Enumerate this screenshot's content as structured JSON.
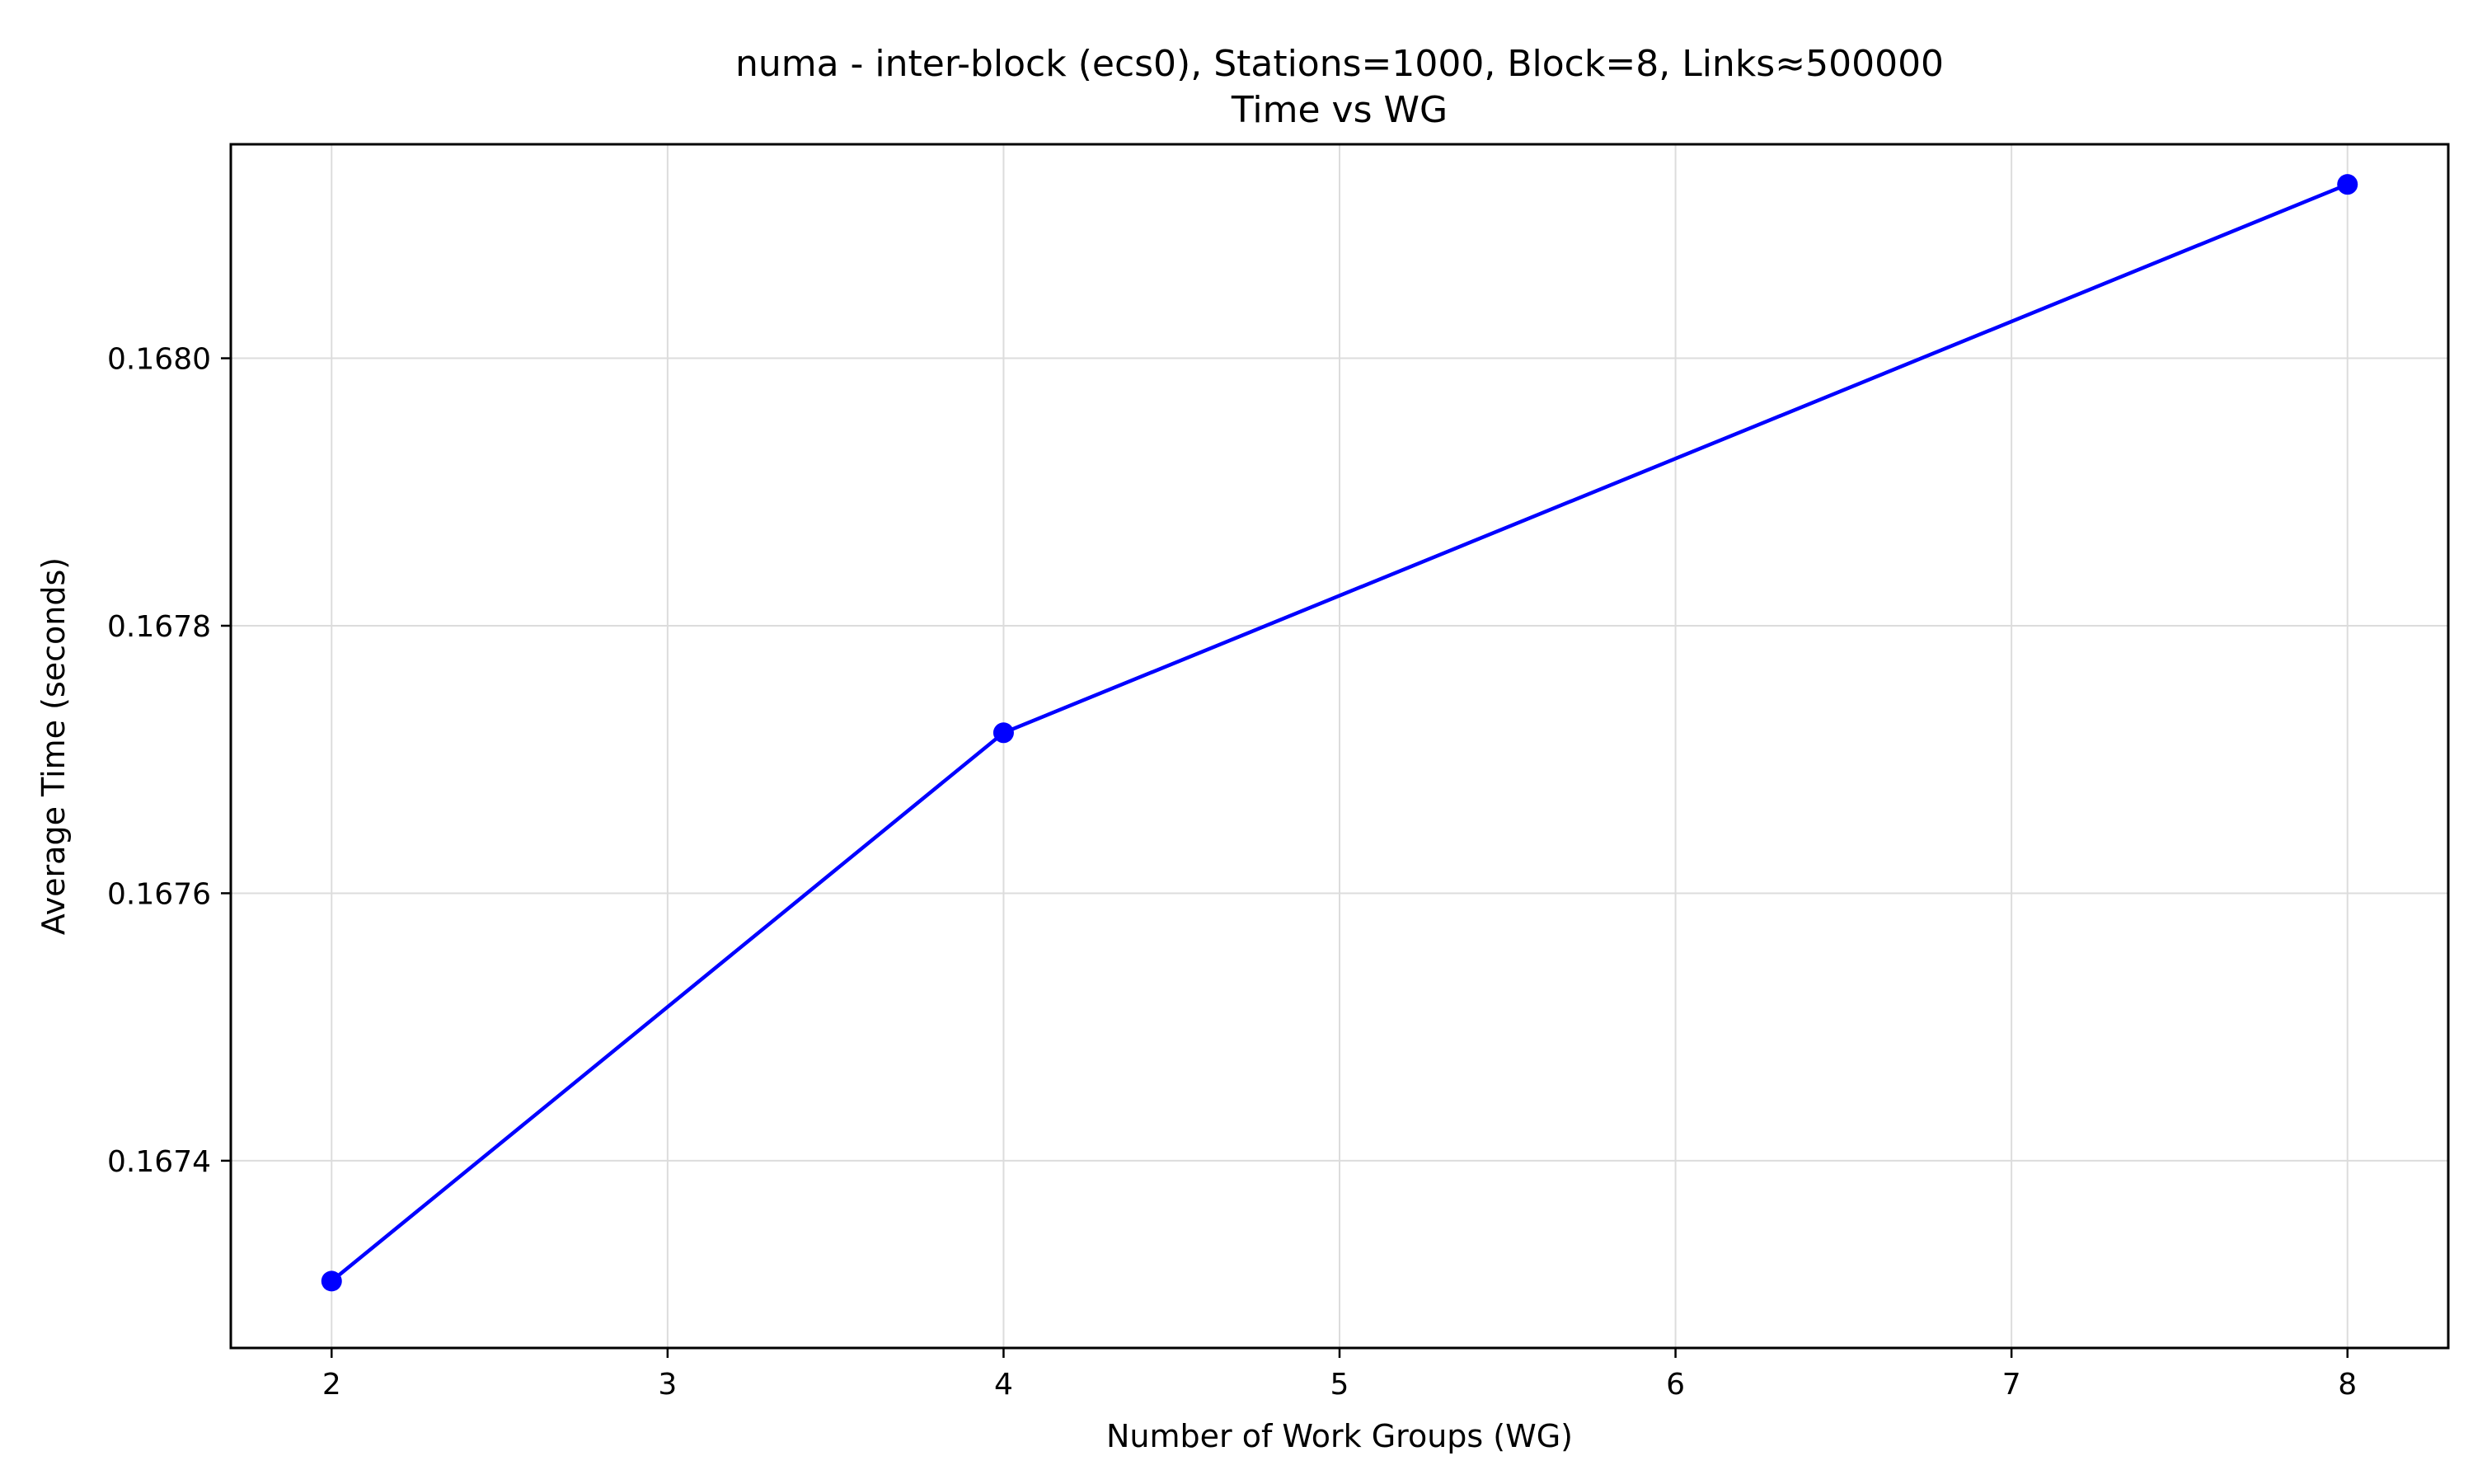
{
  "chart_data": {
    "type": "line",
    "title": "numa - inter-block (ecs0), Stations=1000, Block=8, Links≈500000",
    "subtitle": "Time vs WG",
    "xlabel": "Number of Work Groups (WG)",
    "ylabel": "Average Time (seconds)",
    "xlim": [
      1.7,
      8.3
    ],
    "ylim": [
      0.16726,
      0.16816
    ],
    "x_ticks": [
      2,
      3,
      4,
      5,
      6,
      7,
      8
    ],
    "y_ticks": [
      0.1674,
      0.1676,
      0.1678,
      0.168
    ],
    "y_tick_labels": [
      "0.1674",
      "0.1676",
      "0.1678",
      "0.1680"
    ],
    "grid": true,
    "line_color": "#0000ff",
    "series": [
      {
        "x": [
          2,
          4,
          8
        ],
        "y": [
          0.16731,
          0.16772,
          0.16813
        ]
      }
    ]
  }
}
